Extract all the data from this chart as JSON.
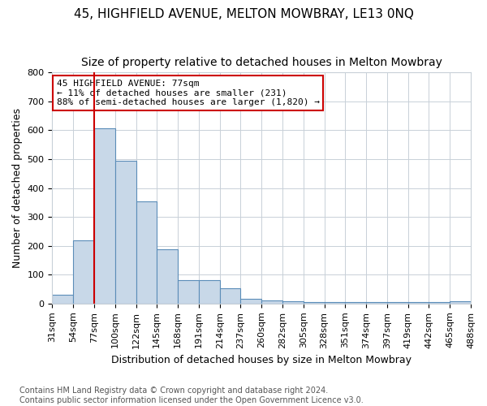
{
  "title": "45, HIGHFIELD AVENUE, MELTON MOWBRAY, LE13 0NQ",
  "subtitle": "Size of property relative to detached houses in Melton Mowbray",
  "xlabel": "Distribution of detached houses by size in Melton Mowbray",
  "ylabel": "Number of detached properties",
  "bin_labels": [
    "31sqm",
    "54sqm",
    "77sqm",
    "100sqm",
    "122sqm",
    "145sqm",
    "168sqm",
    "191sqm",
    "214sqm",
    "237sqm",
    "260sqm",
    "282sqm",
    "305sqm",
    "328sqm",
    "351sqm",
    "374sqm",
    "397sqm",
    "419sqm",
    "442sqm",
    "465sqm",
    "488sqm"
  ],
  "bar_heights": [
    30,
    218,
    608,
    495,
    354,
    187,
    82,
    82,
    52,
    17,
    10,
    8,
    5,
    5,
    5,
    5,
    5,
    5,
    5,
    8
  ],
  "bar_color": "#c8d8e8",
  "bar_edge_color": "#5b8db8",
  "property_line_x": 2,
  "annotation_text": "45 HIGHFIELD AVENUE: 77sqm\n← 11% of detached houses are smaller (231)\n88% of semi-detached houses are larger (1,820) →",
  "annotation_box_color": "#ffffff",
  "annotation_box_edge_color": "#cc0000",
  "vline_color": "#cc0000",
  "ylim": [
    0,
    800
  ],
  "yticks": [
    0,
    100,
    200,
    300,
    400,
    500,
    600,
    700,
    800
  ],
  "footer_line1": "Contains HM Land Registry data © Crown copyright and database right 2024.",
  "footer_line2": "Contains public sector information licensed under the Open Government Licence v3.0.",
  "bg_color": "#ffffff",
  "grid_color": "#c8d0d8",
  "title_fontsize": 11,
  "subtitle_fontsize": 10,
  "axis_label_fontsize": 9,
  "tick_fontsize": 8,
  "annotation_fontsize": 8,
  "footer_fontsize": 7
}
